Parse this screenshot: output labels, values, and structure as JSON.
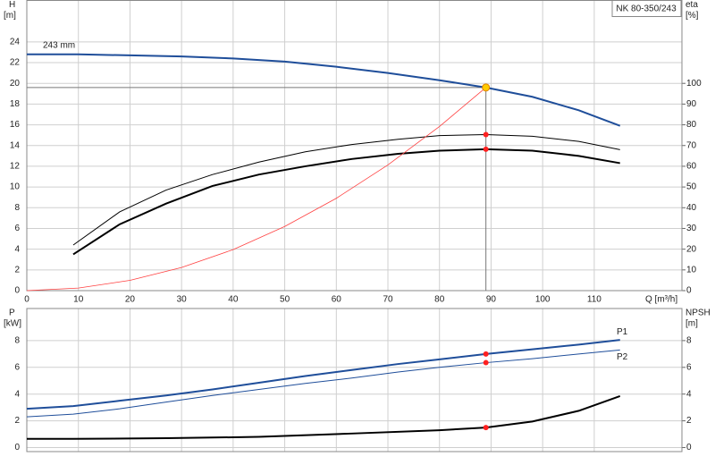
{
  "chart_data": [
    {
      "type": "line",
      "title": "NK 80-350/243",
      "ylabel": "H",
      "yunit": "[m]",
      "y2label": "eta",
      "y2unit": "[%]",
      "xlabel": "Q [m³/h]",
      "xlim": [
        0,
        127
      ],
      "xticks": [
        0,
        10,
        20,
        30,
        40,
        50,
        60,
        70,
        80,
        90,
        100,
        110
      ],
      "ylim": [
        0,
        28
      ],
      "yticks": [
        0,
        2,
        4,
        6,
        8,
        10,
        12,
        14,
        16,
        18,
        20,
        22,
        24
      ],
      "y2lim": [
        0,
        140
      ],
      "y2ticks": [
        0,
        10,
        20,
        30,
        40,
        50,
        60,
        70,
        80,
        90,
        100
      ],
      "grid": true,
      "series": [
        {
          "name": "243 mm",
          "color": "#1f4e9a",
          "line_width": 2,
          "x": [
            0,
            10,
            20,
            30,
            40,
            50,
            60,
            70,
            80,
            89,
            98,
            107,
            115
          ],
          "values": [
            22.8,
            22.8,
            22.7,
            22.6,
            22.4,
            22.1,
            21.6,
            21.0,
            20.3,
            19.6,
            18.7,
            17.4,
            15.9
          ]
        },
        {
          "color": "#000000",
          "line_width": 1,
          "axis": "y2",
          "x": [
            9,
            18,
            27,
            36,
            45,
            54,
            63,
            72,
            80,
            89,
            98,
            107,
            115
          ],
          "values": [
            22,
            38,
            48.5,
            56,
            62,
            67,
            70.5,
            73,
            74.8,
            75.3,
            74.5,
            72,
            68
          ]
        },
        {
          "color": "#000000",
          "line_width": 2,
          "axis": "y2",
          "x": [
            9,
            18,
            27,
            36,
            45,
            54,
            63,
            72,
            80,
            89,
            98,
            107,
            115
          ],
          "values": [
            17.5,
            32,
            42,
            50.5,
            56,
            60,
            63.5,
            66,
            67.5,
            68.2,
            67.5,
            65,
            61.5
          ]
        },
        {
          "color": "#ff4040",
          "line_width": 0.8,
          "x": [
            0,
            10,
            20,
            30,
            40,
            50,
            60,
            70,
            80,
            89
          ],
          "values": [
            0,
            0.25,
            0.99,
            2.23,
            3.96,
            6.19,
            8.91,
            12.13,
            15.84,
            19.6
          ]
        }
      ],
      "points": [
        {
          "x": 89,
          "y": 75.3,
          "axis": "y2",
          "color": "#ff2020"
        },
        {
          "x": 89,
          "y": 68.2,
          "axis": "y2",
          "color": "#ff2020"
        }
      ],
      "operating_point": {
        "x": 89,
        "y": 19.6,
        "color": "#ffcc00"
      }
    },
    {
      "type": "line",
      "ylabel": "P",
      "yunit": "[kW]",
      "y2label": "NPSH",
      "y2unit": "[m]",
      "xlim": [
        0,
        127
      ],
      "xticks": [
        0,
        10,
        20,
        30,
        40,
        50,
        60,
        70,
        80,
        90,
        100,
        110
      ],
      "show_xtick_labels": false,
      "ylim": [
        -0.3,
        10.4
      ],
      "yticks": [
        0,
        2,
        4,
        6,
        8
      ],
      "y2lim": [
        -0.3,
        10.4
      ],
      "y2ticks": [
        0,
        2,
        4,
        6,
        8
      ],
      "grid": true,
      "series": [
        {
          "name": "P1",
          "color": "#1f4e9a",
          "line_width": 2,
          "x": [
            0,
            9,
            18,
            27,
            36,
            45,
            54,
            63,
            72,
            80,
            89,
            98,
            107,
            115
          ],
          "values": [
            2.9,
            3.1,
            3.5,
            3.9,
            4.35,
            4.85,
            5.35,
            5.8,
            6.25,
            6.6,
            7.0,
            7.35,
            7.7,
            8.05
          ]
        },
        {
          "name": "P2",
          "color": "#1f4e9a",
          "line_width": 1,
          "x": [
            0,
            9,
            18,
            27,
            36,
            45,
            54,
            63,
            72,
            80,
            89,
            98,
            107,
            115
          ],
          "values": [
            2.3,
            2.5,
            2.9,
            3.4,
            3.9,
            4.35,
            4.8,
            5.2,
            5.65,
            6.0,
            6.35,
            6.65,
            7.0,
            7.3
          ]
        },
        {
          "color": "#000000",
          "line_width": 2,
          "axis": "y2",
          "x": [
            0,
            9,
            27,
            45,
            63,
            80,
            89,
            98,
            107,
            115
          ],
          "values": [
            0.65,
            0.65,
            0.7,
            0.8,
            1.05,
            1.3,
            1.5,
            1.95,
            2.75,
            3.85
          ]
        }
      ],
      "points": [
        {
          "x": 89,
          "y": 7.0,
          "color": "#ff2020"
        },
        {
          "x": 89,
          "y": 6.35,
          "color": "#ff2020"
        },
        {
          "x": 89,
          "y": 1.5,
          "axis": "y2",
          "color": "#ff2020"
        }
      ]
    }
  ]
}
